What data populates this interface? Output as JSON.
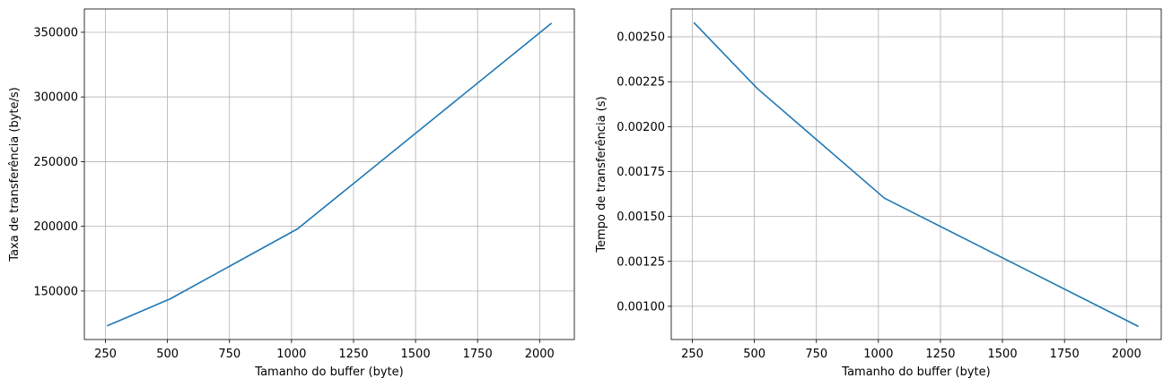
{
  "chart_data": [
    {
      "type": "line",
      "xlabel": "Tamanho do buffer (byte)",
      "ylabel": "Taxa de transferência (byte/s)",
      "xlim": [
        165,
        2140
      ],
      "ylim": [
        112500,
        368000
      ],
      "xticks": [
        250,
        500,
        750,
        1000,
        1250,
        1500,
        1750,
        2000
      ],
      "xtick_labels": [
        "250",
        "500",
        "750",
        "1000",
        "1250",
        "1500",
        "1750",
        "2000"
      ],
      "yticks": [
        150000,
        200000,
        250000,
        300000,
        350000
      ],
      "ytick_labels": [
        "150000",
        "200000",
        "250000",
        "300000",
        "350000"
      ],
      "grid": true,
      "color": "#1f77b4",
      "x": [
        256,
        512,
        1024,
        2048
      ],
      "y": [
        123000,
        144000,
        198000,
        357000
      ]
    },
    {
      "type": "line",
      "xlabel": "Tamanho do buffer (byte)",
      "ylabel": "Tempo de transferência (s)",
      "xlim": [
        165,
        2140
      ],
      "ylim": [
        0.000815,
        0.002655
      ],
      "xticks": [
        250,
        500,
        750,
        1000,
        1250,
        1500,
        1750,
        2000
      ],
      "xtick_labels": [
        "250",
        "500",
        "750",
        "1000",
        "1250",
        "1500",
        "1750",
        "2000"
      ],
      "yticks": [
        0.001,
        0.00125,
        0.0015,
        0.00175,
        0.002,
        0.00225,
        0.0025
      ],
      "ytick_labels": [
        "0.00100",
        "0.00125",
        "0.00150",
        "0.00175",
        "0.00200",
        "0.00225",
        "0.00250"
      ],
      "grid": true,
      "color": "#1f77b4",
      "x": [
        256,
        512,
        1024,
        2048
      ],
      "y": [
        0.002579,
        0.002212,
        0.001602,
        0.000888
      ]
    }
  ]
}
